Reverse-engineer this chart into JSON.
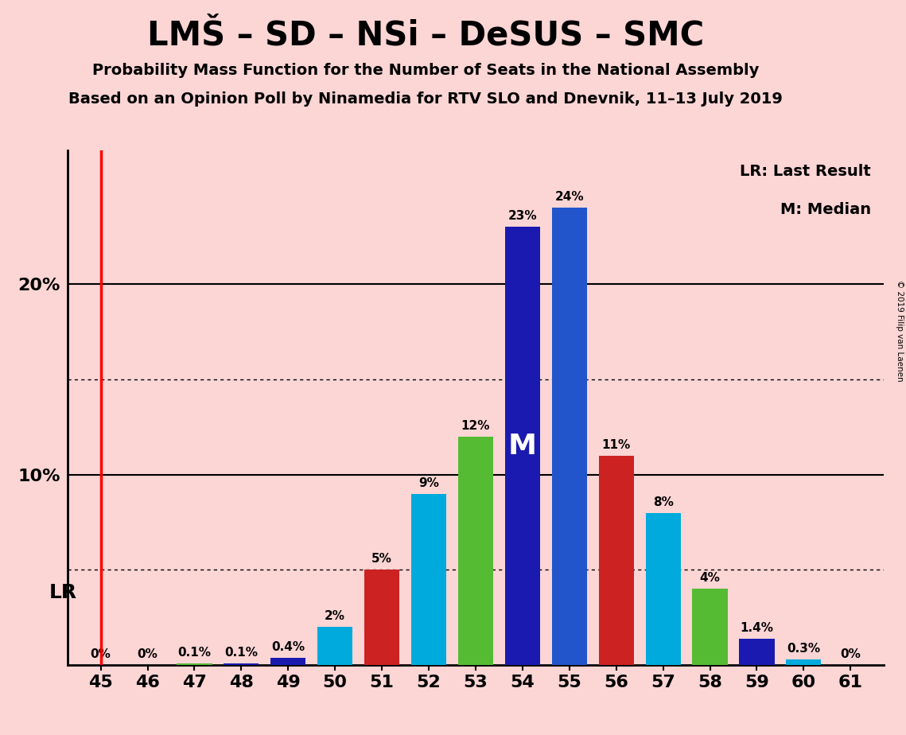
{
  "title": "LMŠ – SD – NSi – DeSUS – SMC",
  "subtitle1": "Probability Mass Function for the Number of Seats in the National Assembly",
  "subtitle2": "Based on an Opinion Poll by Ninamedia for RTV SLO and Dnevnik, 11–13 July 2019",
  "copyright": "© 2019 Filip van Laenen",
  "legend_lr": "LR: Last Result",
  "legend_m": "M: Median",
  "background_color": "#fcd5d5",
  "seats": [
    45,
    46,
    47,
    48,
    49,
    50,
    51,
    52,
    53,
    54,
    55,
    56,
    57,
    58,
    59,
    60,
    61
  ],
  "values": [
    0.0,
    0.0,
    0.1,
    0.1,
    0.4,
    2.0,
    5.0,
    9.0,
    12.0,
    23.0,
    24.0,
    11.0,
    8.0,
    4.0,
    1.4,
    0.3,
    0.0
  ],
  "bar_colors": [
    "#1a1ab0",
    "#00aadd",
    "#55bb33",
    "#1a1ab0",
    "#1a1ab0",
    "#00aadd",
    "#cc2222",
    "#00aadd",
    "#55bb33",
    "#1a1ab0",
    "#2255cc",
    "#cc2222",
    "#00aadd",
    "#55bb33",
    "#1a1ab0",
    "#00aadd",
    "#55bb33"
  ],
  "lr_seat": 45,
  "median_seat": 54,
  "ylim": [
    0,
    27
  ],
  "dotted_lines": [
    5.0,
    15.0
  ],
  "solid_lines": [
    10.0,
    20.0
  ]
}
